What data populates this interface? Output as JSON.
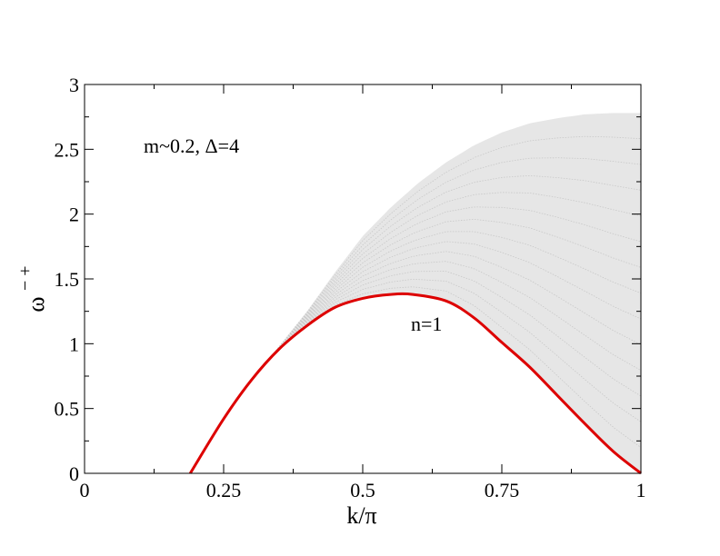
{
  "chart_data": {
    "type": "line",
    "title": "",
    "xlabel": "k/π",
    "ylabel_base": "ω",
    "ylabel_sup": "− +",
    "xlim": [
      0,
      1
    ],
    "ylim": [
      0,
      3
    ],
    "xticks": [
      0,
      0.25,
      0.5,
      0.75,
      1
    ],
    "xtick_labels": [
      "0",
      "0.25",
      "0.5",
      "0.75",
      "1"
    ],
    "yticks": [
      0,
      0.5,
      1,
      1.5,
      2,
      2.5,
      3
    ],
    "ytick_labels": [
      "0",
      "0.5",
      "1",
      "1.5",
      "2",
      "2.5",
      "3"
    ],
    "grid": false,
    "colors": {
      "main_curve": "#dd0000",
      "continuum": "#c8c8c8"
    },
    "annotations": {
      "params": "m~0.2, Δ=4",
      "curve_label": "n=1"
    },
    "series": [
      {
        "x": [
          0.19,
          0.25,
          0.3,
          0.35,
          0.4,
          0.45,
          0.5,
          0.55,
          0.59,
          0.65,
          0.7,
          0.75,
          0.8,
          0.85,
          0.9,
          0.95,
          1.0
        ],
        "y": [
          0.0,
          0.42,
          0.72,
          0.96,
          1.14,
          1.28,
          1.35,
          1.38,
          1.38,
          1.33,
          1.2,
          1.01,
          0.82,
          0.6,
          0.38,
          0.17,
          0.0
        ]
      }
    ],
    "continuum": {
      "description_upper_x": [
        0.19,
        0.25,
        0.3,
        0.35,
        0.4,
        0.45,
        0.5,
        0.55,
        0.6,
        0.65,
        0.7,
        0.75,
        0.8,
        0.85,
        0.9,
        0.95,
        1.0
      ],
      "upper_y": [
        0.0,
        0.42,
        0.72,
        0.98,
        1.25,
        1.55,
        1.83,
        2.05,
        2.24,
        2.4,
        2.53,
        2.63,
        2.7,
        2.74,
        2.77,
        2.78,
        2.78
      ]
    }
  }
}
